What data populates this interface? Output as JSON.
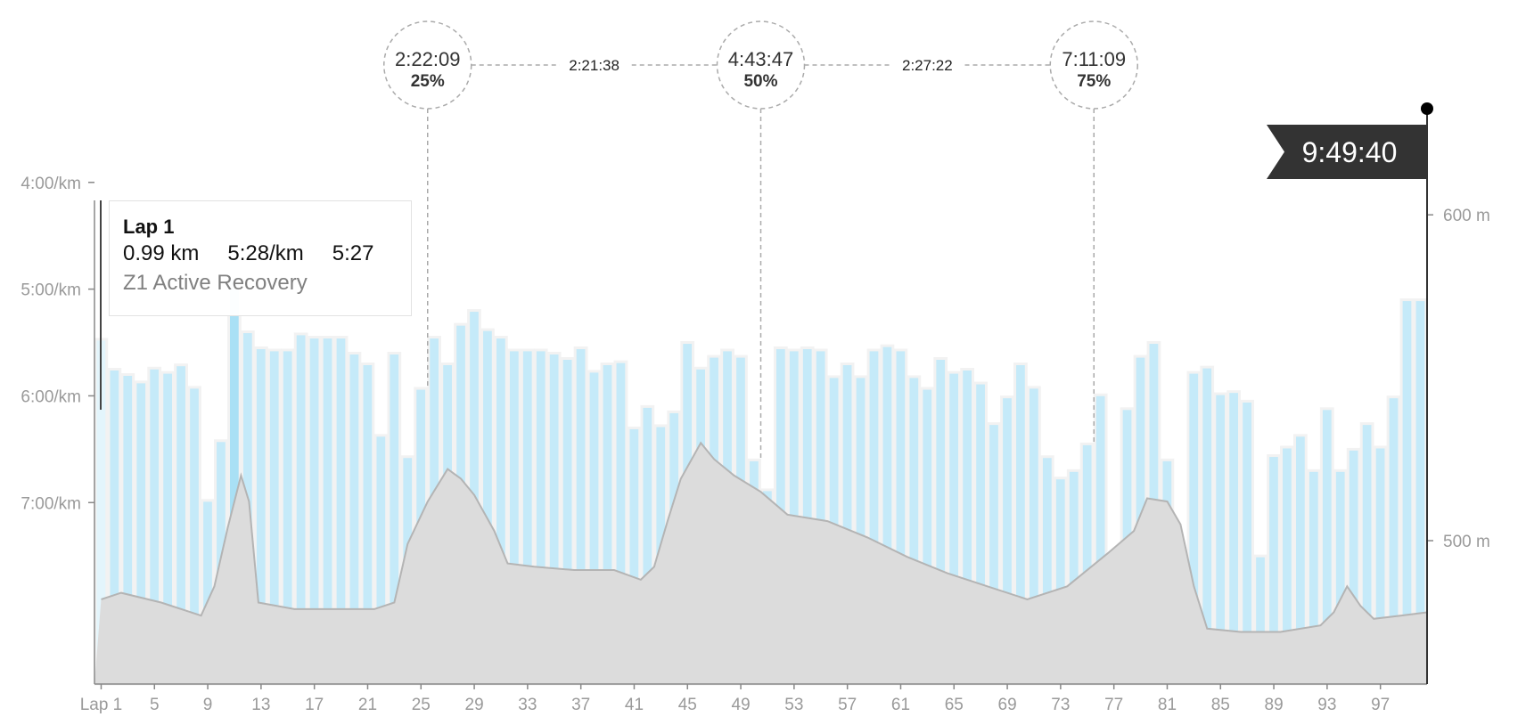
{
  "chart_data": {
    "type": "bar",
    "categories": [
      "Lap 1",
      "2",
      "3",
      "4",
      "5",
      "6",
      "7",
      "8",
      "9",
      "10",
      "11",
      "12",
      "13",
      "14",
      "15",
      "16",
      "17",
      "18",
      "19",
      "20",
      "21",
      "22",
      "23",
      "24",
      "25",
      "26",
      "27",
      "28",
      "29",
      "30",
      "31",
      "32",
      "33",
      "34",
      "35",
      "36",
      "37",
      "38",
      "39",
      "40",
      "41",
      "42",
      "43",
      "44",
      "45",
      "46",
      "47",
      "48",
      "49",
      "50",
      "51",
      "52",
      "53",
      "54",
      "55",
      "56",
      "57",
      "58",
      "59",
      "60",
      "61",
      "62",
      "63",
      "64",
      "65",
      "66",
      "67",
      "68",
      "69",
      "70",
      "71",
      "72",
      "73",
      "74",
      "75",
      "76",
      "77",
      "78",
      "79",
      "80",
      "81",
      "82",
      "83",
      "84",
      "85",
      "86",
      "87",
      "88",
      "89",
      "90",
      "91",
      "92",
      "93",
      "94",
      "95",
      "96",
      "97",
      "98",
      "99",
      "100"
    ],
    "x_tick_labels": [
      "Lap 1",
      "5",
      "9",
      "13",
      "17",
      "21",
      "25",
      "29",
      "33",
      "37",
      "41",
      "45",
      "49",
      "53",
      "57",
      "61",
      "65",
      "69",
      "73",
      "77",
      "81",
      "85",
      "89",
      "93",
      "97"
    ],
    "x_tick_laps": [
      1,
      5,
      9,
      13,
      17,
      21,
      25,
      29,
      33,
      37,
      41,
      45,
      49,
      53,
      57,
      61,
      65,
      69,
      73,
      77,
      81,
      85,
      89,
      93,
      97
    ],
    "pace_axis_labels": [
      "4:00/km",
      "5:00/km",
      "6:00/km",
      "7:00/km"
    ],
    "pace_axis_values": [
      4.0,
      5.0,
      6.0,
      7.0
    ],
    "elevation_axis_labels": [
      "600 m",
      "500 m"
    ],
    "elevation_axis_values": [
      600,
      500
    ],
    "pace_range": [
      2.625,
      8.7
    ],
    "elevation_range": [
      456,
      655
    ],
    "pace_min_per_km": [
      5.47,
      5.75,
      5.8,
      5.87,
      5.74,
      5.78,
      5.71,
      5.92,
      6.98,
      6.42,
      4.9,
      5.4,
      5.55,
      5.57,
      5.57,
      5.42,
      5.45,
      5.45,
      5.45,
      5.6,
      5.7,
      6.37,
      5.6,
      6.57,
      5.93,
      5.45,
      5.7,
      5.33,
      5.2,
      5.38,
      5.45,
      5.57,
      5.57,
      5.57,
      5.6,
      5.65,
      5.55,
      5.77,
      5.7,
      5.68,
      6.3,
      6.1,
      6.28,
      6.15,
      5.5,
      5.74,
      5.63,
      5.57,
      5.63,
      6.6,
      6.88,
      5.55,
      5.57,
      5.55,
      5.57,
      5.82,
      5.7,
      5.82,
      5.57,
      5.53,
      5.57,
      5.82,
      5.93,
      5.65,
      5.78,
      5.75,
      5.88,
      6.26,
      6.01,
      5.7,
      5.92,
      6.57,
      6.77,
      6.7,
      6.45,
      5.99,
      7.48,
      6.12,
      5.63,
      5.5,
      6.6,
      7.45,
      5.78,
      5.73,
      5.98,
      5.96,
      6.05,
      7.5,
      6.56,
      6.48,
      6.37,
      6.7,
      6.12,
      6.7,
      6.5,
      6.26,
      6.48,
      6.01,
      5.1,
      5.1
    ],
    "selected_lap_index": 0,
    "elevation_m": [
      {
        "lap": 0.5,
        "m": 482
      },
      {
        "lap": 2,
        "m": 484
      },
      {
        "lap": 5,
        "m": 481
      },
      {
        "lap": 8,
        "m": 477
      },
      {
        "lap": 9,
        "m": 486
      },
      {
        "lap": 10,
        "m": 504
      },
      {
        "lap": 11,
        "m": 520
      },
      {
        "lap": 11.6,
        "m": 512
      },
      {
        "lap": 12.3,
        "m": 481
      },
      {
        "lap": 15,
        "m": 479
      },
      {
        "lap": 18,
        "m": 479
      },
      {
        "lap": 21,
        "m": 479
      },
      {
        "lap": 22.5,
        "m": 481
      },
      {
        "lap": 23.5,
        "m": 499
      },
      {
        "lap": 25,
        "m": 512
      },
      {
        "lap": 26.5,
        "m": 522
      },
      {
        "lap": 27.5,
        "m": 519
      },
      {
        "lap": 28.5,
        "m": 514
      },
      {
        "lap": 30,
        "m": 503
      },
      {
        "lap": 31,
        "m": 493
      },
      {
        "lap": 33,
        "m": 492
      },
      {
        "lap": 36,
        "m": 491
      },
      {
        "lap": 39,
        "m": 491
      },
      {
        "lap": 41,
        "m": 488
      },
      {
        "lap": 42,
        "m": 492
      },
      {
        "lap": 43,
        "m": 506
      },
      {
        "lap": 44,
        "m": 519
      },
      {
        "lap": 45.5,
        "m": 530
      },
      {
        "lap": 46.5,
        "m": 525
      },
      {
        "lap": 48,
        "m": 520
      },
      {
        "lap": 50,
        "m": 515
      },
      {
        "lap": 52,
        "m": 508
      },
      {
        "lap": 55,
        "m": 506
      },
      {
        "lap": 58,
        "m": 501
      },
      {
        "lap": 61,
        "m": 495
      },
      {
        "lap": 64,
        "m": 490
      },
      {
        "lap": 67,
        "m": 486
      },
      {
        "lap": 70,
        "m": 482
      },
      {
        "lap": 73,
        "m": 486
      },
      {
        "lap": 76,
        "m": 496
      },
      {
        "lap": 78,
        "m": 503
      },
      {
        "lap": 79,
        "m": 513
      },
      {
        "lap": 80.5,
        "m": 512
      },
      {
        "lap": 81.5,
        "m": 505
      },
      {
        "lap": 82.5,
        "m": 486
      },
      {
        "lap": 83.5,
        "m": 473
      },
      {
        "lap": 86,
        "m": 472
      },
      {
        "lap": 89,
        "m": 472
      },
      {
        "lap": 92,
        "m": 474
      },
      {
        "lap": 93,
        "m": 478
      },
      {
        "lap": 94,
        "m": 486
      },
      {
        "lap": 95,
        "m": 480
      },
      {
        "lap": 96,
        "m": 476
      },
      {
        "lap": 98,
        "m": 477
      },
      {
        "lap": 100.5,
        "m": 478
      }
    ],
    "splits": [
      {
        "time": "2:22:09",
        "percent": "25%",
        "lap": 25.5
      },
      {
        "time": "4:43:47",
        "percent": "50%",
        "lap": 50.5
      },
      {
        "time": "7:11:09",
        "percent": "75%",
        "lap": 75.5
      }
    ],
    "split_diffs": [
      "2:21:38",
      "2:27:22"
    ],
    "finish_time": "9:49:40",
    "colors": {
      "bar": "#c5eaf9",
      "bar_highlight": "#a9e0f5",
      "bar_selected": "#e3f5fc",
      "bar_outline": "#f2f2f2",
      "elevation_fill": "#dcdcdc",
      "elevation_line": "#b4b4b4",
      "axis": "#888888",
      "tick_text": "#9a9a9a",
      "split_line": "#aaaaaa",
      "flag": "#333333",
      "flag_text": "#ffffff"
    }
  },
  "tooltip": {
    "title": "Lap 1",
    "distance": "0.99 km",
    "pace": "5:28/km",
    "time": "5:27",
    "zone": "Z1 Active Recovery"
  }
}
